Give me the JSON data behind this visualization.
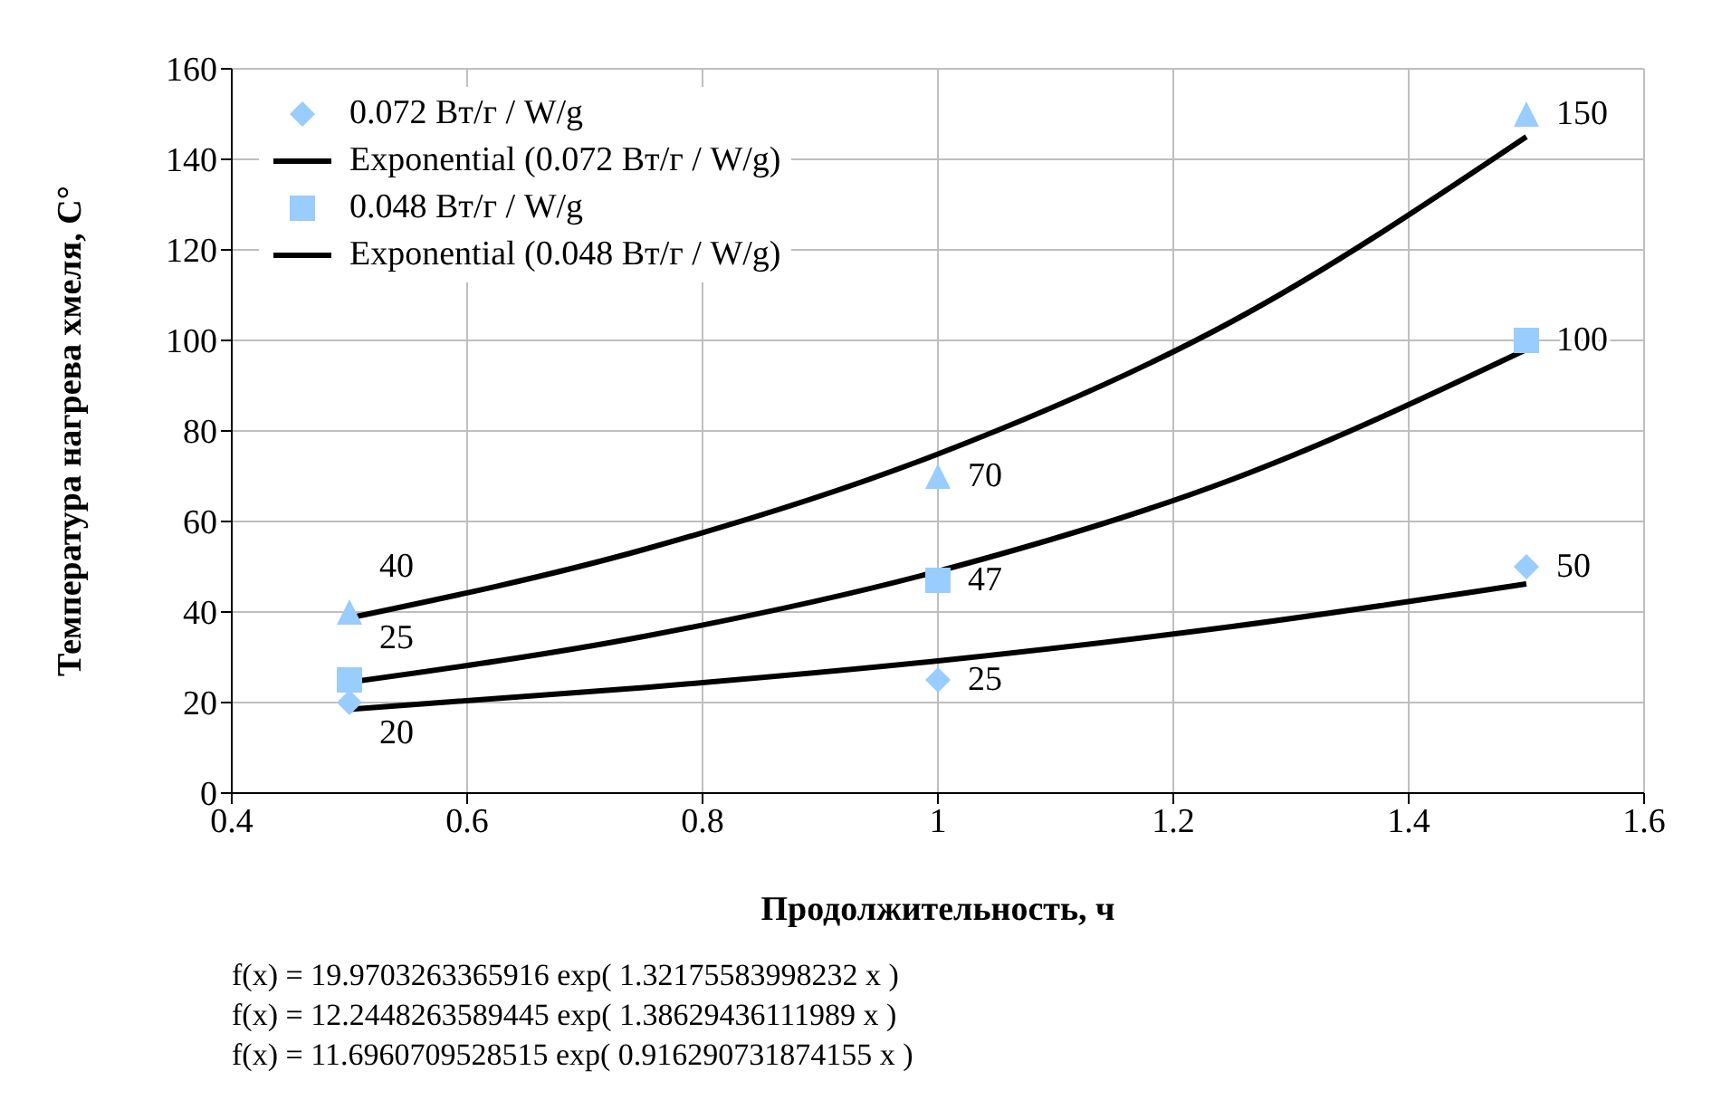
{
  "chart_data": {
    "type": "scatter",
    "xlabel": "Продолжительность, ч",
    "ylabel": "Температура  нагрева хмеля, С°",
    "xlim": [
      0.4,
      1.6
    ],
    "xticks": [
      0.4,
      0.6,
      0.8,
      1,
      1.2,
      1.4,
      1.6
    ],
    "ylim": [
      0,
      160
    ],
    "yticks": [
      0,
      20,
      40,
      60,
      80,
      100,
      120,
      140,
      160
    ],
    "grid": true,
    "legend": "top left",
    "series": [
      {
        "name": "0.072 Вт/г / W/g",
        "type": "scatter",
        "marker": "diamond",
        "color": "#99ccff",
        "x": [
          0.5,
          1,
          1.5
        ],
        "values": [
          20,
          25,
          50
        ],
        "value_labels": [
          "20",
          "25",
          "50"
        ]
      },
      {
        "name": "Exponential (0.072 Вт/г / W/g)",
        "type": "line",
        "marker": "none",
        "color": "#000000",
        "x": [
          0.5,
          0.75,
          1,
          1.25,
          1.5
        ],
        "values": [
          18.5,
          23.3,
          29.2,
          36.8,
          46.2
        ]
      },
      {
        "name": "0.048 Вт/г / W/g",
        "type": "scatter",
        "marker": "square",
        "color": "#99ccff",
        "x": [
          0.5,
          1,
          1.5
        ],
        "values": [
          25,
          47,
          100
        ],
        "value_labels": [
          "25",
          "47",
          "100"
        ]
      },
      {
        "name": "Exponential (0.048 Вт/г / W/g)",
        "type": "line",
        "marker": "none",
        "color": "#000000",
        "x": [
          0.5,
          0.75,
          1,
          1.25,
          1.5
        ],
        "values": [
          24.5,
          34.6,
          49.0,
          69.3,
          98.0
        ]
      },
      {
        "type": "scatter",
        "marker": "triangle",
        "color": "#99ccff",
        "x": [
          0.5,
          1,
          1.5
        ],
        "values": [
          40,
          70,
          150
        ],
        "value_labels": [
          "40",
          "70",
          "150"
        ]
      },
      {
        "type": "line",
        "marker": "none",
        "color": "#000000",
        "x": [
          0.5,
          0.75,
          1,
          1.25,
          1.5
        ],
        "values": [
          38.7,
          53.8,
          74.9,
          104.2,
          145.0
        ]
      }
    ],
    "annotations": [
      "f(x) = 19.9703263365916 exp( 1.32175583998232 x )",
      "f(x) = 12.2448263589445 exp( 1.38629436111989 x )",
      "f(x) = 11.6960709528515 exp( 0.916290731874155 x )"
    ]
  }
}
